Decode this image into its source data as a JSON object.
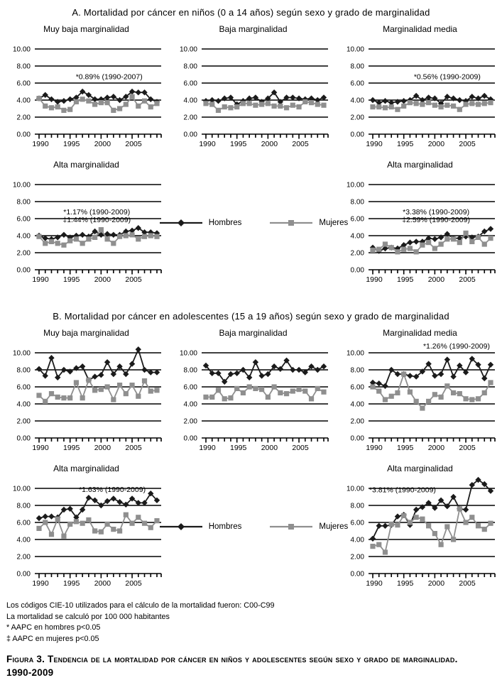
{
  "figure": {
    "section_a_title": "A. Mortalidad por cáncer en niños (0 a 14 años) según sexo y grado de marginalidad",
    "section_b_title": "B. Mortalidad por cáncer en adolescentes (15 a 19 años) según sexo y grado de marginalidad",
    "legend": {
      "hombres": "Hombres",
      "mujeres": "Mujeres"
    },
    "footnotes": [
      "Los códigos CIE-10 utilizados para el cálculo de la mortalidad fueron: C00-C99",
      "La mortalidad se calculó por 100 000 habitantes",
      "* AAPC en hombres p<0.05",
      "‡ AAPC en mujeres p<0.05"
    ],
    "caption_line1": "Figura 3. Tendencia de la mortalidad por cáncer en niños y adolescentes según sexo y grado de marginalidad.",
    "caption_line2": "1990-2009"
  },
  "colors": {
    "hombres": "#1b1b1b",
    "mujeres": "#8f8f8f",
    "grid": "#000000"
  },
  "axis": {
    "ylim": [
      0,
      10
    ],
    "y_tick_values": [
      10,
      8,
      6,
      4,
      2,
      0
    ],
    "y_tick_labels": [
      "10.00",
      "8.00",
      "6.00",
      "4.00",
      "2.00",
      "0.00"
    ],
    "x_years": [
      1990,
      1991,
      1992,
      1993,
      1994,
      1995,
      1996,
      1997,
      1998,
      1999,
      2000,
      2001,
      2002,
      2003,
      2004,
      2005,
      2006,
      2007,
      2008,
      2009
    ],
    "x_tick_labels": [
      "1990",
      "1995",
      "2000",
      "2005"
    ],
    "x_tick_years": [
      1990,
      1995,
      2000,
      2005
    ],
    "grid_on": true
  },
  "chart_data": [
    {
      "id": "a-muy-baja",
      "type": "line",
      "section": "A",
      "title": "Muy baja marginalidad",
      "annotations": [
        {
          "text": "*0.89% (1990-2007)",
          "x": 2001.3,
          "y": 6.45
        }
      ],
      "series": [
        {
          "name": "Hombres",
          "key": "hombres",
          "values": [
            4.2,
            4.6,
            4.1,
            3.8,
            3.9,
            4.1,
            4.3,
            5.0,
            4.6,
            4.1,
            4.1,
            4.3,
            4.4,
            4.0,
            4.4,
            5.0,
            4.9,
            4.9,
            4.1,
            3.8
          ]
        },
        {
          "name": "Mujeres",
          "key": "mujeres",
          "values": [
            4.2,
            3.3,
            3.1,
            3.2,
            2.8,
            2.9,
            3.8,
            4.1,
            3.9,
            3.5,
            3.7,
            3.7,
            2.8,
            3.0,
            3.5,
            4.4,
            3.3,
            3.9,
            3.2,
            3.6
          ]
        }
      ]
    },
    {
      "id": "a-baja",
      "type": "line",
      "section": "A",
      "title": "Baja marginalidad",
      "annotations": [],
      "series": [
        {
          "name": "Hombres",
          "key": "hombres",
          "values": [
            3.9,
            4.0,
            3.9,
            4.2,
            4.3,
            3.5,
            3.9,
            4.2,
            4.3,
            3.8,
            4.2,
            4.9,
            3.8,
            4.3,
            4.3,
            4.2,
            4.1,
            4.2,
            4.0,
            4.3
          ]
        },
        {
          "name": "Mujeres",
          "key": "mujeres",
          "values": [
            3.6,
            3.5,
            2.8,
            3.2,
            3.1,
            3.2,
            3.6,
            3.6,
            3.4,
            3.5,
            3.6,
            3.3,
            3.3,
            3.1,
            3.4,
            3.2,
            3.8,
            3.7,
            3.5,
            3.4
          ]
        }
      ]
    },
    {
      "id": "a-media",
      "type": "line",
      "section": "A",
      "title": "Marginalidad media",
      "annotations": [
        {
          "text": "*0.56% (1990-2009)",
          "x": 2002,
          "y": 6.45
        }
      ],
      "series": [
        {
          "name": "Hombres",
          "key": "hombres",
          "values": [
            4.0,
            3.7,
            3.9,
            3.7,
            3.8,
            3.9,
            4.0,
            4.5,
            4.0,
            4.3,
            4.2,
            3.6,
            4.4,
            4.2,
            4.0,
            3.9,
            4.4,
            4.2,
            4.5,
            4.1
          ]
        },
        {
          "name": "Mujeres",
          "key": "mujeres",
          "values": [
            3.2,
            3.2,
            3.1,
            3.2,
            2.9,
            3.3,
            3.7,
            3.6,
            3.5,
            3.7,
            3.4,
            3.2,
            3.4,
            3.3,
            2.9,
            3.5,
            3.6,
            3.5,
            3.6,
            3.7
          ]
        }
      ]
    },
    {
      "id": "a-alta-1",
      "type": "line",
      "section": "A",
      "title": "Alta marginalidad",
      "annotations": [
        {
          "text": "*1.17% (1990-2009)",
          "x": 1999.3,
          "y": 6.5
        },
        {
          "text": "‡1.44% (1990-2009)",
          "x": 1999.3,
          "y": 5.6
        }
      ],
      "series": [
        {
          "name": "Hombres",
          "key": "hombres",
          "values": [
            4.0,
            3.7,
            3.6,
            3.8,
            4.1,
            3.8,
            4.0,
            4.1,
            3.9,
            4.5,
            4.1,
            4.2,
            4.1,
            4.1,
            4.5,
            4.6,
            4.9,
            4.4,
            4.4,
            4.3
          ]
        },
        {
          "name": "Mujeres",
          "key": "mujeres",
          "values": [
            3.9,
            3.1,
            3.3,
            3.1,
            2.9,
            3.4,
            3.6,
            3.1,
            3.6,
            3.8,
            4.7,
            3.6,
            3.1,
            3.9,
            4.0,
            4.1,
            3.6,
            3.9,
            4.0,
            3.9
          ]
        }
      ]
    },
    {
      "id": "a-alta-2",
      "type": "line",
      "section": "A",
      "title": "Alta marginalidad",
      "annotations": [
        {
          "text": "*3.38% (1990-2009)",
          "x": 2000.2,
          "y": 6.5
        },
        {
          "text": "‡2.59% (1990-2009)",
          "x": 2000.2,
          "y": 5.6
        }
      ],
      "series": [
        {
          "name": "Hombres",
          "key": "hombres",
          "values": [
            2.6,
            2.2,
            2.5,
            2.6,
            2.5,
            2.9,
            3.2,
            3.3,
            3.3,
            3.7,
            3.6,
            3.8,
            4.2,
            3.7,
            3.7,
            3.9,
            3.8,
            3.9,
            4.5,
            4.8
          ]
        },
        {
          "name": "Mujeres",
          "key": "mujeres",
          "values": [
            2.3,
            2.4,
            3.0,
            2.6,
            2.1,
            2.4,
            2.5,
            2.1,
            2.9,
            3.2,
            2.5,
            3.0,
            3.6,
            3.6,
            3.2,
            4.3,
            3.3,
            3.8,
            3.0,
            3.7
          ]
        }
      ]
    },
    {
      "id": "b-muy-baja",
      "type": "line",
      "section": "B",
      "title": "Muy baja marginalidad",
      "annotations": [],
      "series": [
        {
          "name": "Hombres",
          "key": "hombres",
          "values": [
            8.1,
            7.3,
            9.4,
            7.1,
            8.0,
            7.8,
            8.2,
            8.4,
            6.8,
            7.2,
            7.4,
            8.9,
            7.5,
            8.4,
            7.5,
            8.7,
            10.4,
            8.0,
            7.7,
            7.7
          ]
        },
        {
          "name": "Mujeres",
          "key": "mujeres",
          "values": [
            5.0,
            4.3,
            5.2,
            4.8,
            4.7,
            4.7,
            6.5,
            4.7,
            6.8,
            5.6,
            5.7,
            6.0,
            4.5,
            6.2,
            5.2,
            6.2,
            4.9,
            6.7,
            5.5,
            5.6
          ]
        }
      ]
    },
    {
      "id": "b-baja",
      "type": "line",
      "section": "B",
      "title": "Baja marginalidad",
      "annotations": [],
      "series": [
        {
          "name": "Hombres",
          "key": "hombres",
          "values": [
            8.5,
            7.6,
            7.6,
            6.6,
            7.5,
            7.6,
            8.0,
            7.1,
            8.9,
            7.3,
            7.5,
            8.4,
            8.1,
            9.1,
            8.0,
            8.0,
            7.7,
            8.4,
            8.0,
            8.4
          ]
        },
        {
          "name": "Mujeres",
          "key": "mujeres",
          "values": [
            4.8,
            4.8,
            5.6,
            4.6,
            4.7,
            5.8,
            5.3,
            6.0,
            5.8,
            5.7,
            4.8,
            6.0,
            5.3,
            5.2,
            5.5,
            5.7,
            5.5,
            4.6,
            5.8,
            5.4
          ]
        }
      ]
    },
    {
      "id": "b-media",
      "type": "line",
      "section": "B",
      "title": "Marginalidad media",
      "annotations": [
        {
          "text": "*1.26% (1990-2009)",
          "x": 2003.5,
          "y": 10.5
        }
      ],
      "series": [
        {
          "name": "Hombres",
          "key": "hombres",
          "values": [
            6.5,
            6.4,
            6.1,
            8.0,
            7.5,
            7.5,
            7.3,
            7.2,
            7.8,
            8.7,
            7.3,
            7.5,
            9.2,
            7.2,
            8.5,
            7.7,
            9.3,
            8.6,
            7.0,
            8.6
          ]
        },
        {
          "name": "Mujeres",
          "key": "mujeres",
          "values": [
            6.0,
            5.5,
            4.5,
            4.9,
            5.3,
            7.5,
            5.4,
            4.3,
            3.5,
            4.3,
            5.1,
            4.8,
            6.1,
            5.3,
            5.2,
            4.6,
            4.5,
            4.6,
            5.3,
            6.5
          ]
        }
      ]
    },
    {
      "id": "b-alta-1",
      "type": "line",
      "section": "B",
      "title": "Alta marginalidad",
      "annotations": [
        {
          "text": "*1.63% (1990-2009)",
          "x": 2001.8,
          "y": 9.6
        }
      ],
      "series": [
        {
          "name": "Hombres",
          "key": "hombres",
          "values": [
            6.5,
            6.7,
            6.7,
            6.6,
            7.5,
            7.6,
            6.6,
            7.5,
            8.9,
            8.6,
            8.0,
            8.5,
            8.8,
            8.4,
            8.1,
            8.8,
            8.3,
            8.3,
            9.4,
            8.6
          ]
        },
        {
          "name": "Mujeres",
          "key": "mujeres",
          "values": [
            5.3,
            6.0,
            4.6,
            6.4,
            4.4,
            5.8,
            6.1,
            5.9,
            6.3,
            5.0,
            4.9,
            5.8,
            5.2,
            5.0,
            6.9,
            5.9,
            6.6,
            5.9,
            5.4,
            6.2
          ]
        }
      ]
    },
    {
      "id": "b-alta-2",
      "type": "line",
      "section": "B",
      "title": "Alta marginalidad",
      "annotations": [
        {
          "text": "*3.81% (1990-2009)",
          "x": 1994.8,
          "y": 9.55
        }
      ],
      "series": [
        {
          "name": "Hombres",
          "key": "hombres",
          "values": [
            4.1,
            5.6,
            5.6,
            5.7,
            6.7,
            6.9,
            5.7,
            7.5,
            7.8,
            8.3,
            7.7,
            8.6,
            7.9,
            9.0,
            7.6,
            7.5,
            10.4,
            11.0,
            10.5,
            9.7
          ]
        },
        {
          "name": "Mujeres",
          "key": "mujeres",
          "values": [
            3.2,
            3.4,
            2.5,
            5.8,
            5.7,
            6.8,
            6.0,
            6.6,
            6.4,
            5.6,
            4.7,
            3.4,
            5.5,
            4.0,
            7.6,
            6.0,
            6.6,
            5.6,
            5.2,
            5.9
          ]
        }
      ]
    }
  ]
}
